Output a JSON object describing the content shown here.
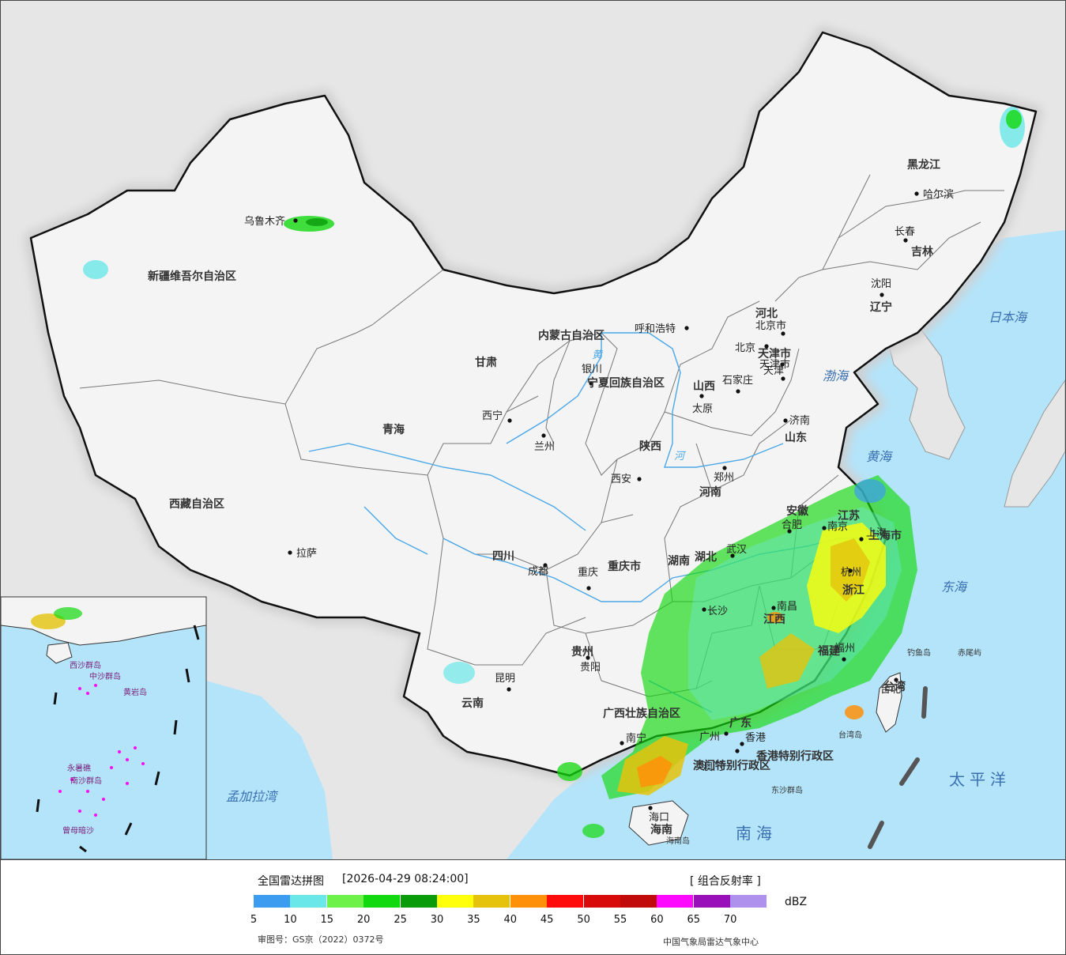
{
  "map": {
    "cities": [
      {
        "name": "乌鲁木齐"
      },
      {
        "name": "拉萨"
      },
      {
        "name": "西宁"
      },
      {
        "name": "兰州"
      },
      {
        "name": "银川"
      },
      {
        "name": "呼和浩特"
      },
      {
        "name": "北京"
      },
      {
        "name": "北京市"
      },
      {
        "name": "天津"
      },
      {
        "name": "天津市"
      },
      {
        "name": "石家庄"
      },
      {
        "name": "太原"
      },
      {
        "name": "济南"
      },
      {
        "name": "郑州"
      },
      {
        "name": "西安"
      },
      {
        "name": "成都"
      },
      {
        "name": "重庆"
      },
      {
        "name": "贵阳"
      },
      {
        "name": "昆明"
      },
      {
        "name": "南宁"
      },
      {
        "name": "广州"
      },
      {
        "name": "香港"
      },
      {
        "name": "澳门"
      },
      {
        "name": "海口"
      },
      {
        "name": "长沙"
      },
      {
        "name": "武汉"
      },
      {
        "name": "南昌"
      },
      {
        "name": "福州"
      },
      {
        "name": "杭州"
      },
      {
        "name": "合肥"
      },
      {
        "name": "南京"
      },
      {
        "name": "上海"
      },
      {
        "name": "沈阳"
      },
      {
        "name": "长春"
      },
      {
        "name": "哈尔滨"
      },
      {
        "name": "台北"
      }
    ],
    "provinces": [
      "新疆维吾尔自治区",
      "西藏自治区",
      "青海",
      "甘肃",
      "内蒙古自治区",
      "宁夏回族自治区",
      "陕西",
      "山西",
      "河北",
      "山东",
      "河南",
      "四川",
      "重庆市",
      "贵州",
      "云南",
      "广西壮族自治区",
      "广东",
      "湖南",
      "湖北",
      "江西",
      "福建",
      "浙江",
      "安徽",
      "江苏",
      "上海市",
      "辽宁",
      "吉林",
      "黑龙江",
      "台湾",
      "海南",
      "香港特别行政区",
      "澳门特别行政区",
      "天津市"
    ],
    "seas": [
      "渤海",
      "黄海",
      "东海",
      "日本海",
      "太平洋",
      "南海",
      "孟加拉湾"
    ],
    "islands": [
      "钓鱼岛",
      "赤尾屿",
      "东沙群岛",
      "台湾岛",
      "海南岛",
      "西沙群岛",
      "中沙群岛",
      "南沙群岛",
      "黄岩岛",
      "永暑礁",
      "曾母暗沙"
    ],
    "river_labels": [
      "黄",
      "河"
    ]
  },
  "legend": {
    "title": "全国雷达拼图",
    "timestamp": "[2026-04-29 08:24:00]",
    "product": "[ 组合反射率 ]",
    "unit": "dBZ",
    "scale": [
      {
        "value": "5",
        "color": "#3c9cf0"
      },
      {
        "value": "10",
        "color": "#6ae7e8"
      },
      {
        "value": "15",
        "color": "#6ef24a"
      },
      {
        "value": "20",
        "color": "#12d80e"
      },
      {
        "value": "25",
        "color": "#0a9b0a"
      },
      {
        "value": "30",
        "color": "#fffe0b"
      },
      {
        "value": "35",
        "color": "#e5c30c"
      },
      {
        "value": "40",
        "color": "#fe9109"
      },
      {
        "value": "45",
        "color": "#fe0c0b"
      },
      {
        "value": "50",
        "color": "#d80a0a"
      },
      {
        "value": "55",
        "color": "#c10a0a"
      },
      {
        "value": "60",
        "color": "#fd0afe"
      },
      {
        "value": "65",
        "color": "#9910ba"
      },
      {
        "value": "70",
        "color": "#ae91ec"
      }
    ],
    "approval": "审图号：GS京（2022）0372号",
    "source": "中国气象局雷达气象中心"
  },
  "colors": {
    "sea": "#b4e4fa",
    "land_outside": "#e6e6e6",
    "china_land": "#f4f4f4",
    "border": "#111111",
    "river": "#4aa8e8"
  }
}
